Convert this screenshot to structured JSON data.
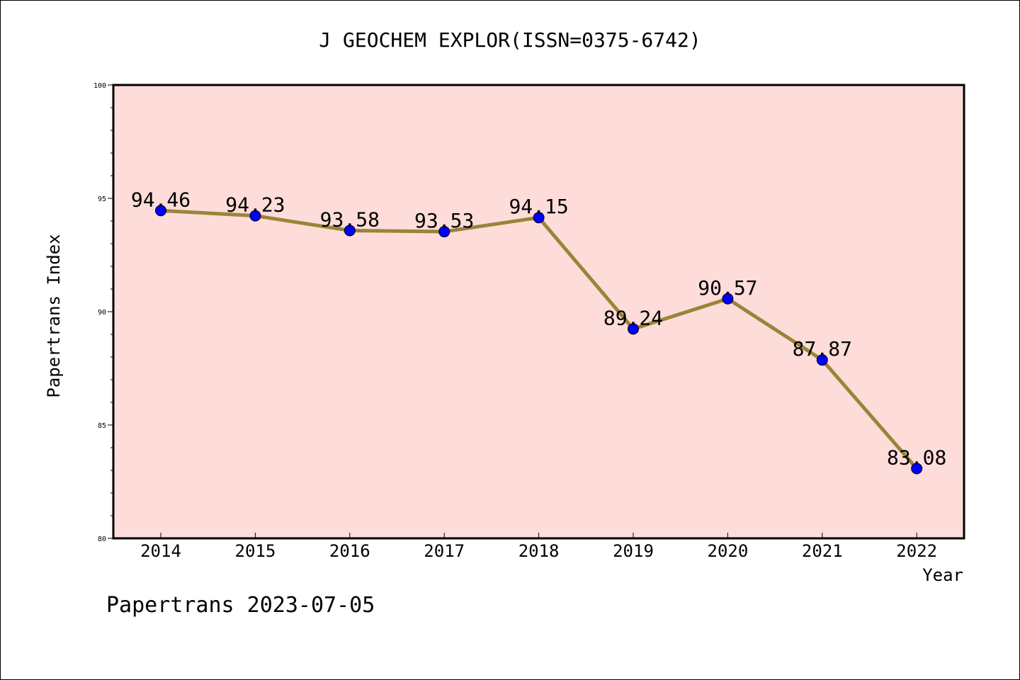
{
  "chart_data": {
    "type": "line",
    "title": "J GEOCHEM EXPLOR(ISSN=0375-6742)",
    "xlabel": "Year",
    "ylabel": "Papertrans Index",
    "categories": [
      "2014",
      "2015",
      "2016",
      "2017",
      "2018",
      "2019",
      "2020",
      "2021",
      "2022"
    ],
    "series": [
      {
        "values": [
          94.46,
          94.23,
          93.58,
          93.53,
          94.15,
          89.24,
          90.57,
          87.87,
          83.08
        ],
        "labels": [
          "94.46",
          "94.23",
          "93.58",
          "93.53",
          "94.15",
          "89.24",
          "90.57",
          "87.87",
          "83.08"
        ]
      }
    ],
    "ylim": [
      80,
      100
    ],
    "yticks": [
      "80",
      "85",
      "90",
      "95",
      "100"
    ],
    "grid": false,
    "colors": {
      "plot_background": "#fddcd9",
      "line": "#9a8438",
      "marker": "#0000ff"
    }
  },
  "footer": {
    "text": "Papertrans 2023-07-05"
  }
}
